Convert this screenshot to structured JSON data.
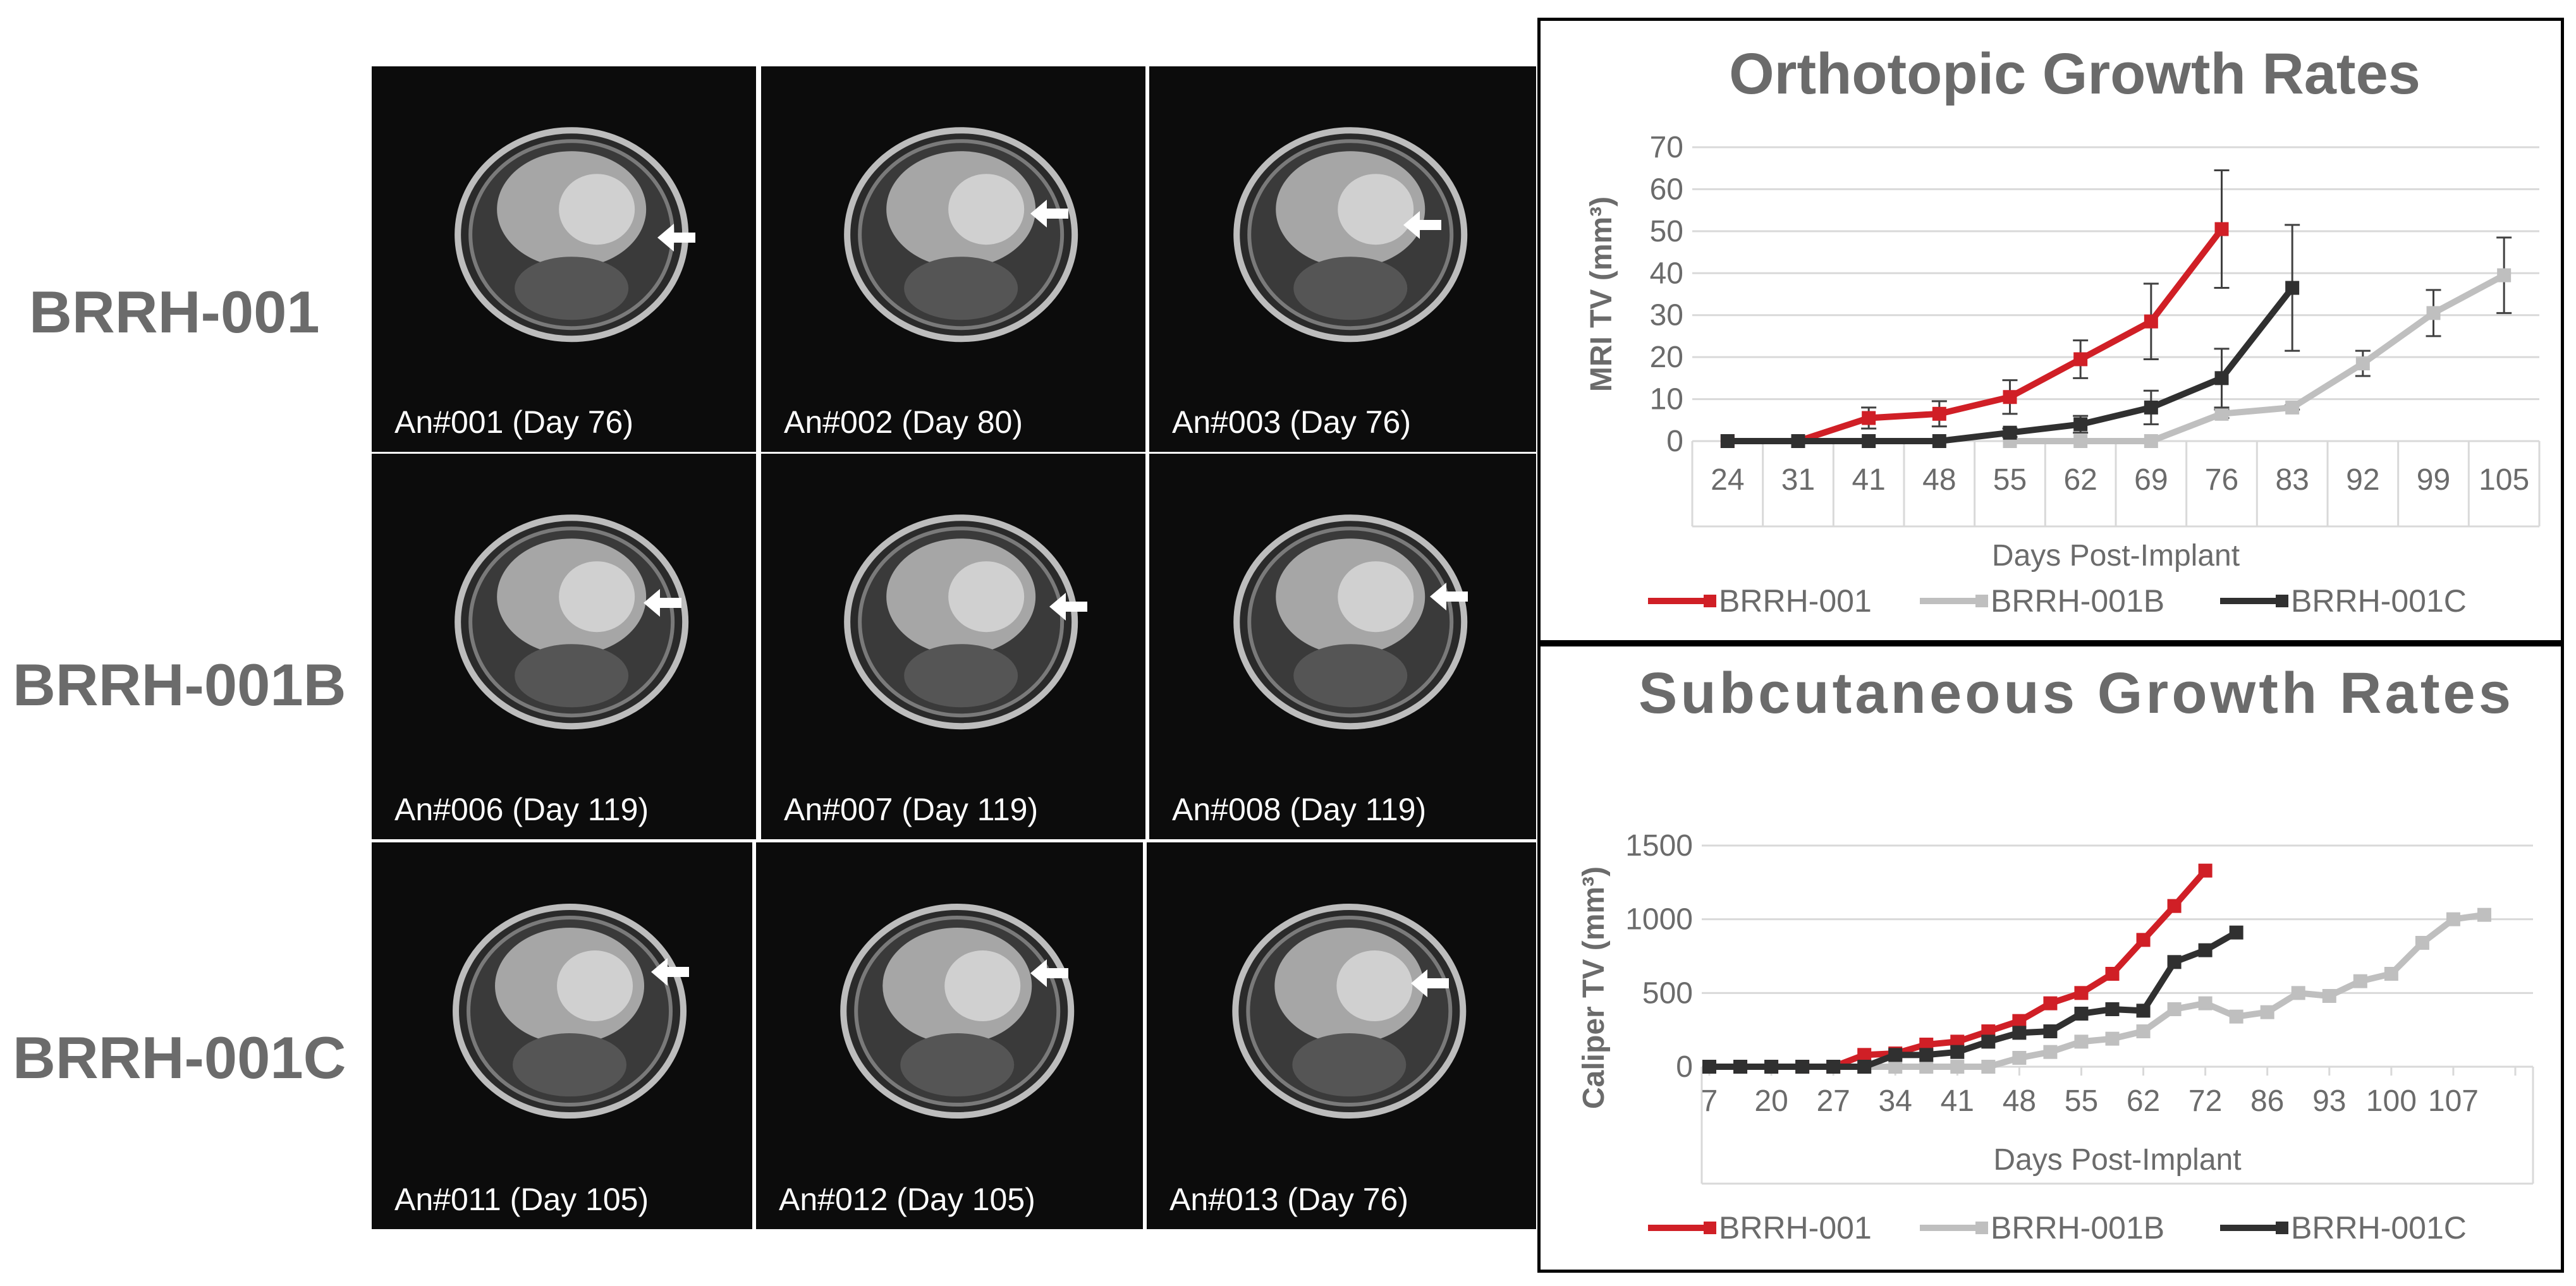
{
  "row_labels": [
    "BRRH-001",
    "BRRH-001B",
    "BRRH-001C"
  ],
  "mri_images": [
    {
      "caption": "An#001 (Day 76)",
      "arrow_label": "tumor-arrow"
    },
    {
      "caption": "An#002 (Day 80)",
      "arrow_label": "tumor-arrow"
    },
    {
      "caption": "An#003 (Day 76)",
      "arrow_label": "tumor-arrow"
    },
    {
      "caption": "An#006 (Day 119)",
      "arrow_label": "tumor-arrow"
    },
    {
      "caption": "An#007 (Day 119)",
      "arrow_label": "tumor-arrow"
    },
    {
      "caption": "An#008 (Day 119)",
      "arrow_label": "tumor-arrow"
    },
    {
      "caption": "An#011 (Day 105)",
      "arrow_label": "tumor-arrow"
    },
    {
      "caption": "An#012 (Day 105)",
      "arrow_label": "tumor-arrow"
    },
    {
      "caption": "An#013 (Day 76)",
      "arrow_label": "tumor-arrow"
    }
  ],
  "colors": {
    "BRRH-001": "#d01f26",
    "BRRH-001B": "#bfbfbf",
    "BRRH-001C": "#303030",
    "axis_text": "#6b6b6b",
    "grid": "#d9d9d9"
  },
  "chart_data": [
    {
      "type": "line",
      "title": "Orthotopic Growth Rates",
      "xlabel": "Days Post-Implant",
      "ylabel": "MRI TV (mm³)",
      "ylim": [
        0,
        70
      ],
      "yticks": [
        0,
        10,
        20,
        30,
        40,
        50,
        60,
        70
      ],
      "categories": [
        "24",
        "31",
        "41",
        "48",
        "55",
        "62",
        "69",
        "76",
        "83",
        "92",
        "99",
        "105"
      ],
      "series": [
        {
          "name": "BRRH-001",
          "values": [
            0,
            0,
            5.5,
            6.5,
            10.5,
            19.5,
            28.5,
            50.5,
            null,
            null,
            null,
            null
          ],
          "errors": [
            0,
            0,
            2.5,
            3,
            4,
            4.5,
            9,
            14,
            null,
            null,
            null,
            null
          ]
        },
        {
          "name": "BRRH-001B",
          "values": [
            null,
            null,
            null,
            null,
            0,
            0,
            0,
            6.5,
            8,
            18.5,
            30.5,
            39.5
          ],
          "errors": [
            null,
            null,
            null,
            null,
            0,
            0,
            0,
            1,
            0.5,
            3,
            5.5,
            9
          ]
        },
        {
          "name": "BRRH-001C",
          "values": [
            0,
            0,
            0,
            0,
            2,
            4,
            8,
            15,
            36.5,
            null,
            null,
            null
          ],
          "errors": [
            0,
            0,
            0,
            0,
            1,
            2,
            4,
            7,
            15,
            null,
            null,
            null
          ]
        }
      ],
      "legend": [
        "BRRH-001",
        "BRRH-001B",
        "BRRH-001C"
      ]
    },
    {
      "type": "line",
      "title": "Subcutaneous Growth Rates",
      "xlabel": "Days Post-Implant",
      "ylabel": "Caliper TV (mm³)",
      "ylim": [
        0,
        1500
      ],
      "yticks": [
        0,
        500,
        1000,
        1500
      ],
      "x_tick_labels": [
        "7",
        "20",
        "27",
        "34",
        "41",
        "48",
        "55",
        "62",
        "72",
        "86",
        "93",
        "100",
        "107"
      ],
      "series": [
        {
          "name": "BRRH-001",
          "points": [
            [
              0,
              0
            ],
            [
              1,
              0
            ],
            [
              2,
              0
            ],
            [
              3,
              0
            ],
            [
              4,
              0
            ],
            [
              5,
              80
            ],
            [
              6,
              90
            ],
            [
              7,
              150
            ],
            [
              8,
              170
            ],
            [
              9,
              240
            ],
            [
              10,
              310
            ],
            [
              11,
              430
            ],
            [
              12,
              500
            ],
            [
              13,
              630
            ],
            [
              14,
              860
            ],
            [
              15,
              1090
            ],
            [
              16,
              1330
            ]
          ]
        },
        {
          "name": "BRRH-001B",
          "points": [
            [
              0,
              0
            ],
            [
              1,
              0
            ],
            [
              2,
              0
            ],
            [
              3,
              0
            ],
            [
              4,
              0
            ],
            [
              5,
              0
            ],
            [
              6,
              0
            ],
            [
              7,
              0
            ],
            [
              8,
              0
            ],
            [
              9,
              0
            ],
            [
              10,
              60
            ],
            [
              11,
              100
            ],
            [
              12,
              170
            ],
            [
              13,
              190
            ],
            [
              14,
              240
            ],
            [
              15,
              390
            ],
            [
              16,
              430
            ],
            [
              17,
              340
            ],
            [
              18,
              370
            ],
            [
              19,
              500
            ],
            [
              20,
              480
            ],
            [
              21,
              580
            ],
            [
              22,
              630
            ],
            [
              23,
              840
            ],
            [
              24,
              1000
            ],
            [
              25,
              1030
            ]
          ]
        },
        {
          "name": "BRRH-001C",
          "points": [
            [
              0,
              0
            ],
            [
              1,
              0
            ],
            [
              2,
              0
            ],
            [
              3,
              0
            ],
            [
              4,
              0
            ],
            [
              5,
              0
            ],
            [
              6,
              80
            ],
            [
              7,
              80
            ],
            [
              8,
              100
            ],
            [
              9,
              170
            ],
            [
              10,
              230
            ],
            [
              11,
              240
            ],
            [
              12,
              360
            ],
            [
              13,
              390
            ],
            [
              14,
              380
            ],
            [
              15,
              710
            ],
            [
              16,
              790
            ],
            [
              17,
              910
            ]
          ]
        }
      ],
      "legend": [
        "BRRH-001",
        "BRRH-001B",
        "BRRH-001C"
      ]
    }
  ]
}
